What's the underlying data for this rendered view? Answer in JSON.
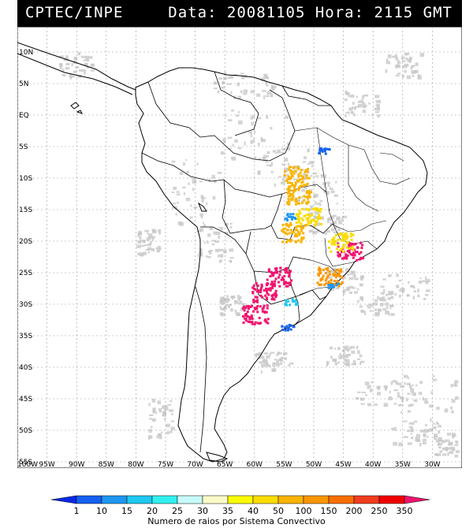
{
  "header": {
    "title": "CPTEC/INPE",
    "info": "Data: 20081105 Hora: 2115 GMT"
  },
  "map": {
    "lon_range": [
      -100,
      -25
    ],
    "lat_range": [
      -56,
      14
    ],
    "lat_labels": [
      {
        "lat": 10,
        "text": "10N"
      },
      {
        "lat": 5,
        "text": "5N"
      },
      {
        "lat": 0,
        "text": "EQ"
      },
      {
        "lat": -5,
        "text": "5S"
      },
      {
        "lat": -10,
        "text": "10S"
      },
      {
        "lat": -15,
        "text": "15S"
      },
      {
        "lat": -20,
        "text": "20S"
      },
      {
        "lat": -25,
        "text": "25S"
      },
      {
        "lat": -30,
        "text": "30S"
      },
      {
        "lat": -35,
        "text": "35S"
      },
      {
        "lat": -40,
        "text": "40S"
      },
      {
        "lat": -45,
        "text": "45S"
      },
      {
        "lat": -50,
        "text": "50S"
      },
      {
        "lat": -55,
        "text": "55S"
      }
    ],
    "lon_labels": [
      {
        "lon": -100,
        "text": "100W"
      },
      {
        "lon": -95,
        "text": "95W"
      },
      {
        "lon": -90,
        "text": "90W"
      },
      {
        "lon": -85,
        "text": "85W"
      },
      {
        "lon": -80,
        "text": "80W"
      },
      {
        "lon": -75,
        "text": "75W"
      },
      {
        "lon": -70,
        "text": "70W"
      },
      {
        "lon": -65,
        "text": "65W"
      },
      {
        "lon": -60,
        "text": "60W"
      },
      {
        "lon": -55,
        "text": "55W"
      },
      {
        "lon": -50,
        "text": "50W"
      },
      {
        "lon": -45,
        "text": "45W"
      },
      {
        "lon": -40,
        "text": "40W"
      },
      {
        "lon": -35,
        "text": "35W"
      },
      {
        "lon": -30,
        "text": "30W"
      }
    ],
    "cloud_color": "#c8c8c8",
    "line_color": "#000000"
  },
  "colorbar": {
    "labels": [
      "1",
      "10",
      "15",
      "20",
      "25",
      "30",
      "35",
      "40",
      "50",
      "100",
      "150",
      "200",
      "250",
      "350"
    ],
    "colors": [
      "#0a28e6",
      "#1460f0",
      "#1e96f0",
      "#1ec8f0",
      "#32f0f0",
      "#c8fafa",
      "#fafac8",
      "#fafa00",
      "#fadc00",
      "#fab400",
      "#fa9600",
      "#fa6e00",
      "#f03c1e",
      "#f00000",
      "#f0146e"
    ],
    "caption": "Numero de raios por Sistema Convectivo"
  },
  "lightning_cells": [
    {
      "lon": -53.0,
      "lat": -9.5,
      "level": "50"
    },
    {
      "lon": -52.5,
      "lat": -12.5,
      "level": "50"
    },
    {
      "lon": -51.0,
      "lat": -16.0,
      "level": "40"
    },
    {
      "lon": -53.5,
      "lat": -18.5,
      "level": "50"
    },
    {
      "lon": -48.5,
      "lat": -5.5,
      "level": "1"
    },
    {
      "lon": -54.0,
      "lat": -16.0,
      "level": "10"
    },
    {
      "lon": -44.0,
      "lat": -21.5,
      "level": "350"
    },
    {
      "lon": -45.5,
      "lat": -20.0,
      "level": "40"
    },
    {
      "lon": -47.5,
      "lat": -25.5,
      "level": "100"
    },
    {
      "lon": -47.0,
      "lat": -27.0,
      "level": "10"
    },
    {
      "lon": -56.0,
      "lat": -25.5,
      "level": "350"
    },
    {
      "lon": -58.5,
      "lat": -28.0,
      "level": "350"
    },
    {
      "lon": -60.0,
      "lat": -31.5,
      "level": "350"
    },
    {
      "lon": -54.0,
      "lat": -29.5,
      "level": "15"
    },
    {
      "lon": -54.5,
      "lat": -33.5,
      "level": "1"
    }
  ]
}
